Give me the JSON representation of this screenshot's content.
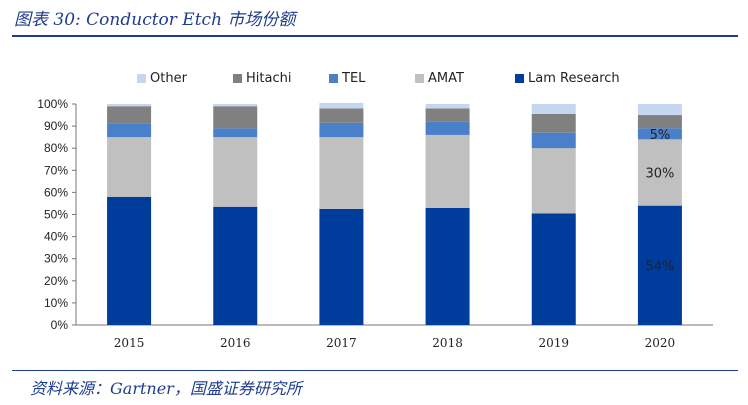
{
  "header": {
    "title": "图表 30: Conductor Etch 市场份额"
  },
  "footer": {
    "source": "资料来源：Gartner，国盛证券研究所"
  },
  "chart_data": {
    "type": "bar",
    "stacked": true,
    "percent": true,
    "categories": [
      "2015",
      "2016",
      "2017",
      "2018",
      "2019",
      "2020"
    ],
    "ylim": [
      0,
      100
    ],
    "yticks": [
      "0%",
      "10%",
      "20%",
      "30%",
      "40%",
      "50%",
      "60%",
      "70%",
      "80%",
      "90%",
      "100%"
    ],
    "grid": false,
    "legend_position": "top",
    "series": [
      {
        "name": "Lam Research",
        "color": "#003c9b",
        "values": [
          58,
          53.5,
          52.5,
          53,
          50.5,
          54
        ]
      },
      {
        "name": "AMAT",
        "color": "#c0c0c0",
        "values": [
          27,
          31.5,
          32.5,
          33,
          29.5,
          30
        ]
      },
      {
        "name": "TEL",
        "color": "#4a80c9",
        "values": [
          6,
          4,
          6.5,
          6,
          7,
          5
        ]
      },
      {
        "name": "Hitachi",
        "color": "#808080",
        "values": [
          8,
          10,
          6.5,
          6,
          8.5,
          6
        ]
      },
      {
        "name": "Other",
        "color": "#c5d7f0",
        "values": [
          1,
          1,
          2.5,
          2,
          4.5,
          5
        ]
      }
    ],
    "legend_order": [
      "Other",
      "Hitachi",
      "TEL",
      "AMAT",
      "Lam Research"
    ],
    "data_labels": [
      {
        "category": "2020",
        "series": "Lam Research",
        "text": "54%"
      },
      {
        "category": "2020",
        "series": "AMAT",
        "text": "30%"
      },
      {
        "category": "2020",
        "series": "TEL",
        "text": "5%"
      }
    ]
  }
}
